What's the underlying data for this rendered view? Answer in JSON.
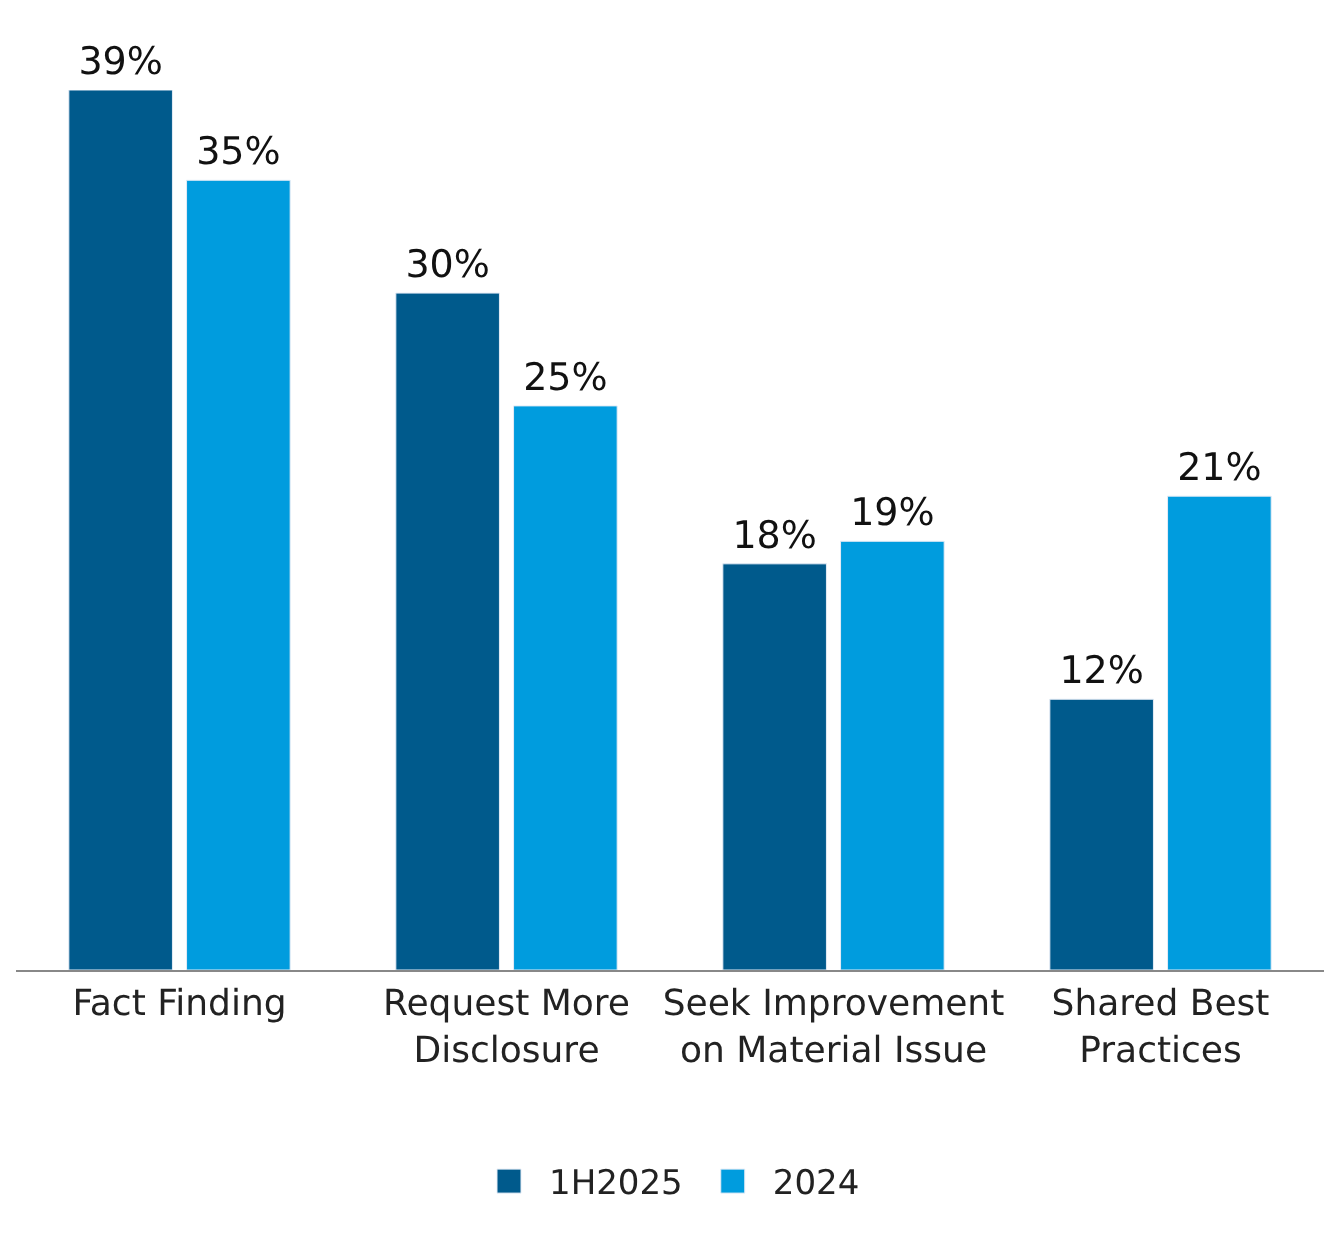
{
  "chart_data": {
    "type": "bar",
    "categories": [
      "Fact Finding",
      "Request More\nDisclosure",
      "Seek Improvement\non Material Issue",
      "Shared Best\nPractices"
    ],
    "series": [
      {
        "name": "1H2025",
        "color": "#005a8c",
        "values": [
          39,
          30,
          18,
          12
        ],
        "value_labels": [
          "39%",
          "30%",
          "18%",
          "12%"
        ]
      },
      {
        "name": "2024",
        "color": "#009cde",
        "values": [
          35,
          25,
          19,
          21
        ],
        "value_labels": [
          "35%",
          "25%",
          "19%",
          "21%"
        ]
      }
    ],
    "legend": "bottom"
  }
}
